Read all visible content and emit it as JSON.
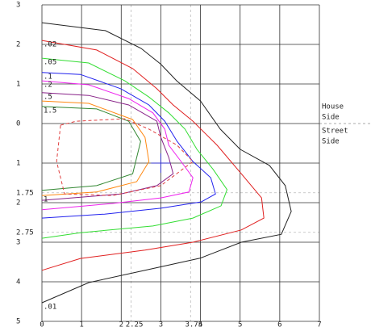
{
  "chart_data": {
    "type": "contour",
    "xlim": [
      0,
      7
    ],
    "ylim": [
      -5,
      3
    ],
    "xticks": [
      0,
      1,
      2,
      3,
      4,
      5,
      6,
      7
    ],
    "xticks_minor": [
      2.25,
      3.75
    ],
    "yticks": [
      3,
      2,
      1,
      0,
      {
        "value": -1,
        "label": "1"
      },
      {
        "value": -2,
        "label": "2"
      },
      {
        "value": -3,
        "label": "3"
      },
      {
        "value": -4,
        "label": "4"
      },
      {
        "value": -5,
        "label": "5"
      }
    ],
    "yticks_minor": [
      {
        "value": -1.75,
        "label": "1.75"
      },
      {
        "value": -2.75,
        "label": "2.75"
      }
    ],
    "grid": true,
    "annotations": [
      "House",
      "Side",
      "Street",
      "Side"
    ],
    "marker": {
      "x": 3,
      "y": -1,
      "color": "#3333cc"
    },
    "series": [
      {
        "name": ".01",
        "color": "#222222",
        "x": [
          0,
          1.18,
          2.6,
          4,
          5.03,
          6.04,
          6.29,
          6.14,
          5.74,
          5,
          4.5,
          4,
          3.4,
          3,
          2.5,
          1.6,
          0
        ],
        "y": [
          -4.53,
          -4.02,
          -3.71,
          -3.4,
          -3,
          -2.8,
          -2.22,
          -1.57,
          -1.06,
          -0.65,
          -0.14,
          0.57,
          1.08,
          1.5,
          1.9,
          2.35,
          2.55
        ]
      },
      {
        "name": ".02",
        "color": "#e02020",
        "x": [
          0,
          1.38,
          2.29,
          2.9,
          3.31,
          3.81,
          4.42,
          5.03,
          5.54,
          5.6,
          5.03,
          3.81,
          2.6,
          0.97,
          0
        ],
        "y": [
          2.1,
          1.86,
          1.39,
          0.88,
          0.47,
          0.06,
          -0.55,
          -1.27,
          -1.88,
          -2.39,
          -2.69,
          -3,
          -3.2,
          -3.41,
          -3.71
        ]
      },
      {
        "name": ".05",
        "color": "#33dd33",
        "x": [
          0,
          1.18,
          2.09,
          2.7,
          3.2,
          3.61,
          3.91,
          4.32,
          4.67,
          4.52,
          3.81,
          2.8,
          0.97,
          0
        ],
        "y": [
          1.65,
          1.53,
          1.08,
          0.67,
          0.27,
          -0.14,
          -0.65,
          -1.16,
          -1.67,
          -2.08,
          -2.39,
          -2.59,
          -2.76,
          -2.9
        ]
      },
      {
        "name": ".1",
        "color": "#2222ee",
        "x": [
          0,
          0.97,
          1.99,
          2.7,
          3.1,
          3.41,
          3.81,
          4.26,
          4.38,
          4.02,
          3,
          1.58,
          0
        ],
        "y": [
          1.29,
          1.24,
          0.88,
          0.47,
          0.06,
          -0.45,
          -0.96,
          -1.37,
          -1.78,
          -1.98,
          -2.14,
          -2.29,
          -2.39
        ]
      },
      {
        "name": ".2",
        "color": "#ee22ee",
        "x": [
          0,
          1.18,
          2.19,
          2.8,
          3.1,
          3.2,
          3.51,
          3.81,
          3.71,
          3,
          1.78,
          0
        ],
        "y": [
          1.08,
          0.98,
          0.63,
          0.27,
          -0.14,
          -0.55,
          -0.96,
          -1.37,
          -1.73,
          -1.88,
          -2.02,
          -2.18
        ]
      },
      {
        "name": ".5",
        "color": "#882288",
        "x": [
          0,
          1.18,
          2.19,
          2.9,
          3,
          3.2,
          3.31,
          2.9,
          1.99,
          0
        ],
        "y": [
          0.78,
          0.71,
          0.47,
          0.06,
          -0.35,
          -0.86,
          -1.27,
          -1.57,
          -1.78,
          -1.94
        ]
      },
      {
        "name": "1",
        "color": "#ff8811",
        "x": [
          0,
          1.38,
          2.39,
          2.7,
          2.6,
          2.29,
          1.18,
          0
        ],
        "y": [
          -1.82,
          -1.73,
          -1.47,
          -0.96,
          -0.35,
          0.1,
          0.51,
          0.57
        ]
      },
      {
        "name": "1.5",
        "color": "#338833",
        "x": [
          0,
          1.38,
          2.19,
          2.49,
          2.29,
          1.38,
          0
        ],
        "y": [
          0.43,
          0.37,
          0.06,
          -0.45,
          -1.27,
          -1.57,
          -1.69
        ]
      },
      {
        "color": "#e04040",
        "dashed": true,
        "x": [
          0.47,
          0.87,
          2.09,
          2.7,
          3.41,
          3.81,
          3,
          1.78,
          0.57,
          0.37,
          0.47
        ],
        "y": [
          -0.04,
          0.06,
          0.12,
          -0.14,
          -0.55,
          -0.96,
          -1.57,
          -1.82,
          -1.78,
          -0.96,
          -0.04
        ]
      }
    ]
  }
}
